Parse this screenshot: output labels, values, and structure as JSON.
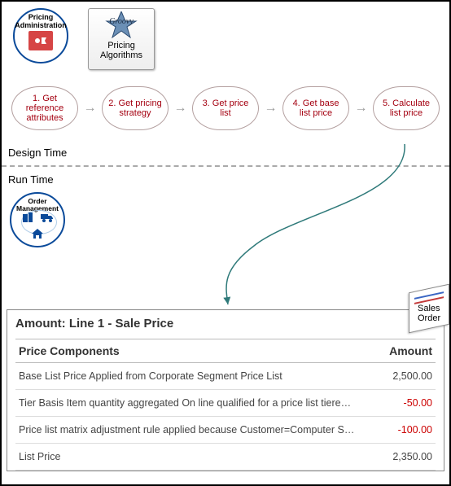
{
  "header": {
    "pricing_admin_label": "Pricing\nAdministration",
    "pricing_algorithms_label": "Pricing\nAlgorithms"
  },
  "flow": {
    "nodes": [
      "1. Get reference attributes",
      "2. Get pricing strategy",
      "3. Get price list",
      "4. Get base list price",
      "5. Calculate list price"
    ],
    "arrow_color": "#999"
  },
  "sections": {
    "design_time": "Design Time",
    "run_time": "Run Time"
  },
  "order_badge_label": "Order\nManagement",
  "sales_flag": "Sales\nOrder",
  "panel": {
    "title": "Amount: Line 1 - Sale Price",
    "col_component": "Price Components",
    "col_amount": "Amount",
    "rows": [
      {
        "label": "Base List Price Applied from Corporate Segment Price List",
        "amount": "2,500.00",
        "negative": false
      },
      {
        "label": "Tier Basis Item quantity aggregated On line qualified for a price list tiere…",
        "amount": "-50.00",
        "negative": true
      },
      {
        "label": "Price list matrix adjustment rule applied because Customer=Computer S…",
        "amount": "-100.00",
        "negative": true
      },
      {
        "label": "List Price",
        "amount": "2,350.00",
        "negative": false
      }
    ]
  },
  "colors": {
    "step_text": "#a40010",
    "badge_ring": "#0a4a9a",
    "negative": "#c00",
    "curve": "#2f7a7a"
  }
}
